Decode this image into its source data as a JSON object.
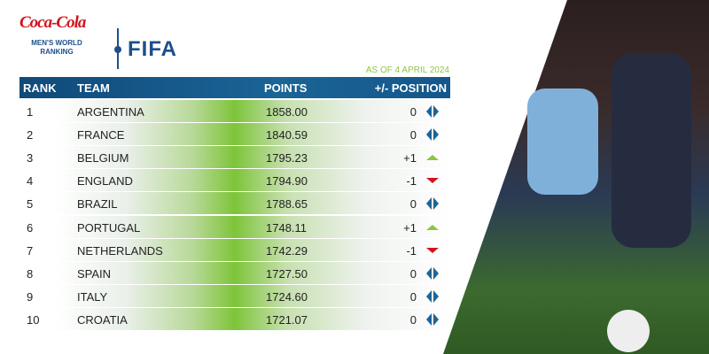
{
  "logo": {
    "brand": "Coca-Cola",
    "subtitle_line1": "MEN'S WORLD",
    "subtitle_line2": "RANKING",
    "org": "FIFA"
  },
  "as_of": "AS OF 4 APRIL 2024",
  "headers": {
    "rank": "RANK",
    "team": "TEAM",
    "points": "POINTS",
    "position": "+/- POSITION"
  },
  "colors": {
    "header": "#14578a",
    "up": "#8cc63f",
    "down": "#d2131d",
    "same": "#1b6496"
  },
  "rows": [
    {
      "rank": "1",
      "team": "ARGENTINA",
      "points": "1858.00",
      "change": "0",
      "trend": "same"
    },
    {
      "rank": "2",
      "team": "FRANCE",
      "points": "1840.59",
      "change": "0",
      "trend": "same"
    },
    {
      "rank": "3",
      "team": "BELGIUM",
      "points": "1795.23",
      "change": "+1",
      "trend": "up"
    },
    {
      "rank": "4",
      "team": "ENGLAND",
      "points": "1794.90",
      "change": "-1",
      "trend": "down"
    },
    {
      "rank": "5",
      "team": "BRAZIL",
      "points": "1788.65",
      "change": "0",
      "trend": "same"
    },
    {
      "rank": "6",
      "team": "PORTUGAL",
      "points": "1748.11",
      "change": "+1",
      "trend": "up"
    },
    {
      "rank": "7",
      "team": "NETHERLANDS",
      "points": "1742.29",
      "change": "-1",
      "trend": "down"
    },
    {
      "rank": "8",
      "team": "SPAIN",
      "points": "1727.50",
      "change": "0",
      "trend": "same"
    },
    {
      "rank": "9",
      "team": "ITALY",
      "points": "1724.60",
      "change": "0",
      "trend": "same"
    },
    {
      "rank": "10",
      "team": "CROATIA",
      "points": "1721.07",
      "change": "0",
      "trend": "same"
    }
  ]
}
